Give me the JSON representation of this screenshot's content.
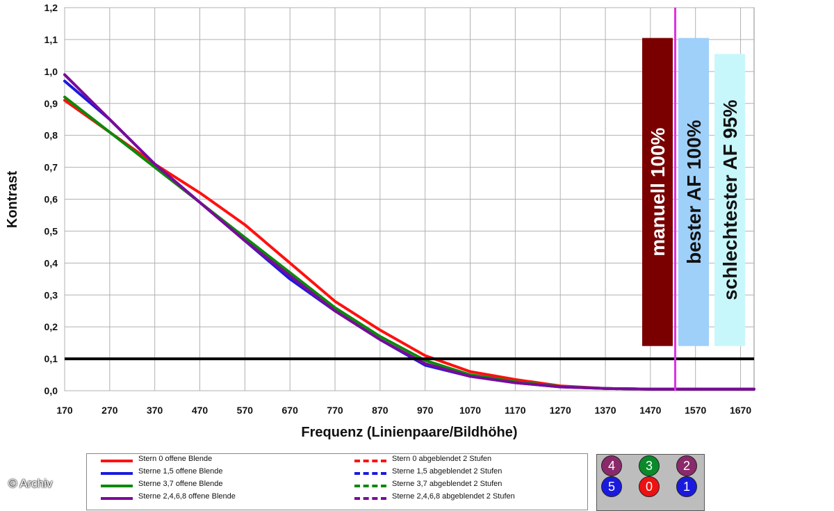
{
  "chart_data": {
    "type": "line",
    "xlabel": "Frequenz (Linienpaare/Bildhöhe)",
    "ylabel": "Kontrast",
    "xlim": [
      170,
      1700
    ],
    "ylim": [
      0,
      1.2
    ],
    "x_ticks": [
      "170",
      "270",
      "370",
      "470",
      "570",
      "670",
      "770",
      "870",
      "970",
      "1070",
      "1170",
      "1270",
      "1370",
      "1470",
      "1570",
      "1670"
    ],
    "y_ticks": [
      "0,0",
      "0,1",
      "0,2",
      "0,3",
      "0,4",
      "0,5",
      "0,6",
      "0,7",
      "0,8",
      "0,9",
      "1,0",
      "1,1",
      "1,2"
    ],
    "grid": true,
    "reference_line": {
      "y": 0.1,
      "color": "#000000"
    },
    "marker_line": {
      "x": 1525,
      "color": "#e030e0"
    },
    "series": [
      {
        "name": "Stern 0 offene Blende",
        "color": "#ff1010",
        "x": [
          170,
          270,
          370,
          470,
          570,
          670,
          770,
          870,
          970,
          1070,
          1170,
          1270,
          1370,
          1470,
          1570,
          1700
        ],
        "y": [
          0.91,
          0.81,
          0.71,
          0.62,
          0.52,
          0.4,
          0.28,
          0.19,
          0.11,
          0.06,
          0.035,
          0.015,
          0.007,
          0.005,
          0.005,
          0.005
        ]
      },
      {
        "name": "Sterne 1,5 offene Blende",
        "color": "#1a1adf",
        "x": [
          170,
          270,
          370,
          470,
          570,
          670,
          770,
          870,
          970,
          1070,
          1170,
          1270,
          1370,
          1470,
          1570,
          1700
        ],
        "y": [
          0.97,
          0.85,
          0.71,
          0.59,
          0.47,
          0.35,
          0.25,
          0.16,
          0.08,
          0.045,
          0.025,
          0.012,
          0.007,
          0.005,
          0.005,
          0.005
        ]
      },
      {
        "name": "Sterne 3,7 offene Blende",
        "color": "#0a8a0a",
        "x": [
          170,
          270,
          370,
          470,
          570,
          670,
          770,
          870,
          970,
          1070,
          1170,
          1270,
          1370,
          1470,
          1570,
          1700
        ],
        "y": [
          0.92,
          0.81,
          0.7,
          0.59,
          0.48,
          0.37,
          0.26,
          0.17,
          0.095,
          0.05,
          0.028,
          0.013,
          0.007,
          0.005,
          0.005,
          0.005
        ]
      },
      {
        "name": "Sterne 2,4,6,8 offene Blende",
        "color": "#7a0a9a",
        "x": [
          170,
          270,
          370,
          470,
          570,
          670,
          770,
          870,
          970,
          1070,
          1170,
          1270,
          1370,
          1470,
          1570,
          1700
        ],
        "y": [
          0.99,
          0.85,
          0.71,
          0.59,
          0.47,
          0.36,
          0.25,
          0.16,
          0.085,
          0.045,
          0.025,
          0.012,
          0.007,
          0.005,
          0.005,
          0.005
        ]
      }
    ],
    "boxes": [
      {
        "label": "manuell 100%",
        "fill": "#7a0000",
        "text_color": "#ffffff",
        "y_top": 1.105
      },
      {
        "label": "bester AF 100%",
        "fill": "#9fd0fa",
        "text_color": "#111111",
        "y_top": 1.105
      },
      {
        "label": "schlechtester AF 95%",
        "fill": "#c8f7fb",
        "text_color": "#111111",
        "y_top": 1.055
      }
    ],
    "legend_entries": [
      {
        "label": "Stern 0 offene Blende",
        "color": "#ff1010",
        "style": "solid"
      },
      {
        "label": "Sterne 1,5 offene Blende",
        "color": "#1a1adf",
        "style": "solid"
      },
      {
        "label": "Sterne 3,7 offene Blende",
        "color": "#0a8a0a",
        "style": "solid"
      },
      {
        "label": "Sterne 2,4,6,8 offene Blende",
        "color": "#7a0a9a",
        "style": "solid"
      },
      {
        "label": "Stern 0 abgeblendet 2 Stufen",
        "color": "#ff1010",
        "style": "dashed"
      },
      {
        "label": "Sterne 1,5 abgeblendet 2 Stufen",
        "color": "#1a1adf",
        "style": "dashed"
      },
      {
        "label": "Sterne 3,7 abgeblendet 2 Stufen",
        "color": "#0a8a0a",
        "style": "dashed"
      },
      {
        "label": "Sterne 2,4,6,8 abgeblendet 2 Stufen",
        "color": "#7a0a9a",
        "style": "dashed"
      }
    ]
  },
  "star_diagram": [
    {
      "n": "4",
      "color": "#8a2a6a"
    },
    {
      "n": "3",
      "color": "#0a8a2a"
    },
    {
      "n": "2",
      "color": "#8a2a6a"
    },
    {
      "n": "5",
      "color": "#1a1adf"
    },
    {
      "n": "0",
      "color": "#ee1111"
    },
    {
      "n": "1",
      "color": "#1a1adf"
    }
  ],
  "copyright": "© Archiv"
}
